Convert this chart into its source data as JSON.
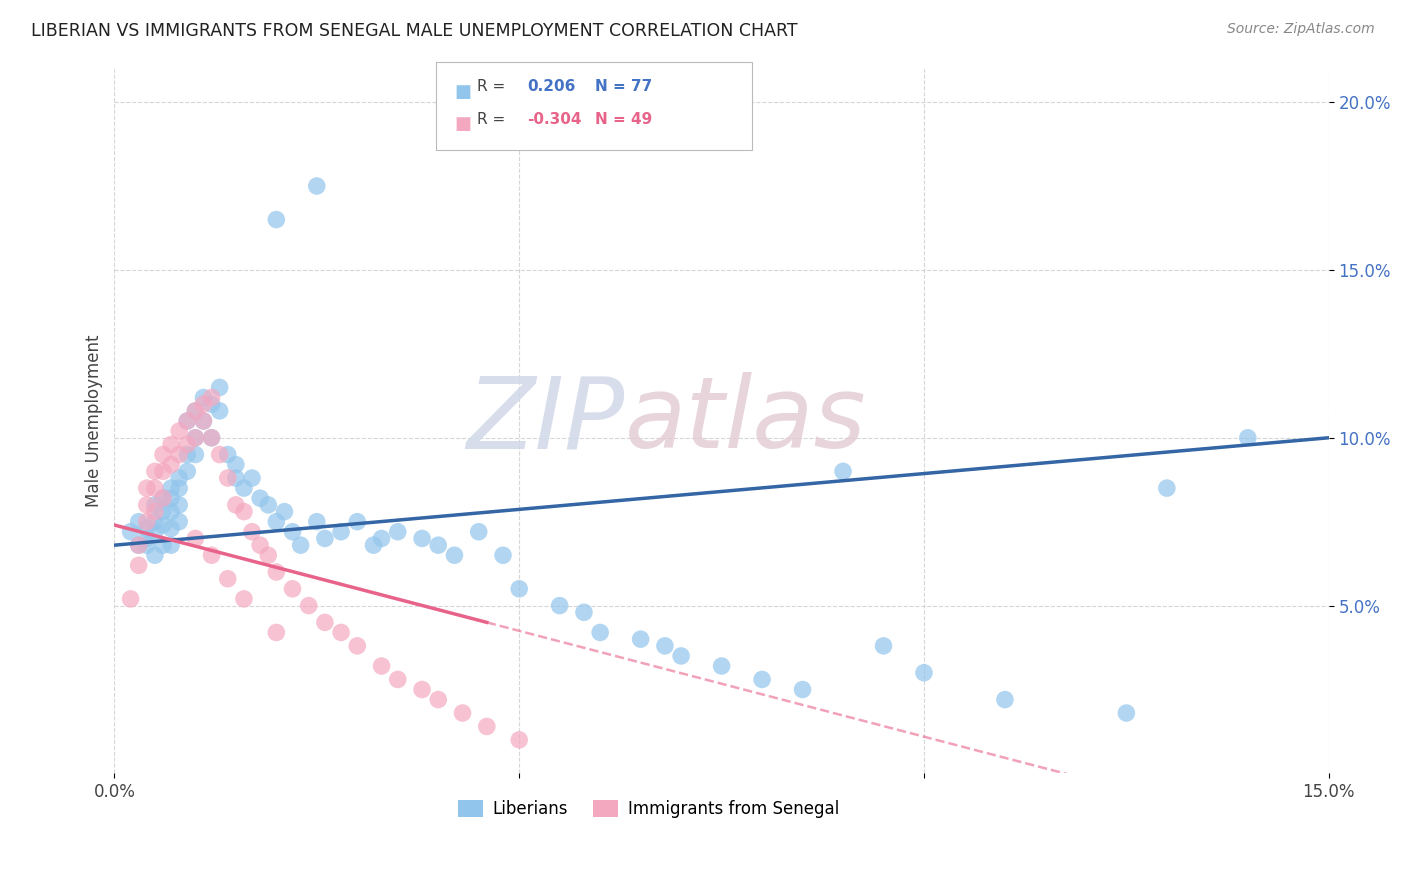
{
  "title": "LIBERIAN VS IMMIGRANTS FROM SENEGAL MALE UNEMPLOYMENT CORRELATION CHART",
  "source": "Source: ZipAtlas.com",
  "ylabel": "Male Unemployment",
  "xlim": [
    0.0,
    0.15
  ],
  "ylim": [
    0.0,
    0.21
  ],
  "yticks": [
    0.05,
    0.1,
    0.15,
    0.2
  ],
  "xticks": [
    0.0,
    0.05,
    0.1,
    0.15
  ],
  "xtick_labels": [
    "0.0%",
    "",
    "",
    "15.0%"
  ],
  "ytick_labels": [
    "5.0%",
    "10.0%",
    "15.0%",
    "20.0%"
  ],
  "legend_blue_r": "0.206",
  "legend_blue_n": "77",
  "legend_pink_r": "-0.304",
  "legend_pink_n": "49",
  "blue_color": "#92C5EC",
  "pink_color": "#F4A8C0",
  "blue_line_color": "#3465A4",
  "pink_line_color": "#E8638A",
  "watermark_zip": "ZIP",
  "watermark_atlas": "atlas",
  "blue_x": [
    0.002,
    0.003,
    0.003,
    0.004,
    0.004,
    0.004,
    0.005,
    0.005,
    0.005,
    0.005,
    0.006,
    0.006,
    0.006,
    0.006,
    0.007,
    0.007,
    0.007,
    0.007,
    0.007,
    0.008,
    0.008,
    0.008,
    0.008,
    0.009,
    0.009,
    0.009,
    0.01,
    0.01,
    0.01,
    0.011,
    0.011,
    0.012,
    0.012,
    0.013,
    0.013,
    0.014,
    0.015,
    0.015,
    0.016,
    0.017,
    0.018,
    0.019,
    0.02,
    0.021,
    0.022,
    0.023,
    0.025,
    0.026,
    0.028,
    0.03,
    0.032,
    0.033,
    0.035,
    0.038,
    0.04,
    0.042,
    0.045,
    0.048,
    0.05,
    0.055,
    0.058,
    0.06,
    0.065,
    0.068,
    0.07,
    0.075,
    0.08,
    0.085,
    0.09,
    0.095,
    0.1,
    0.11,
    0.125,
    0.13,
    0.14,
    0.02,
    0.025
  ],
  "blue_y": [
    0.072,
    0.068,
    0.075,
    0.07,
    0.073,
    0.068,
    0.08,
    0.075,
    0.072,
    0.065,
    0.082,
    0.078,
    0.074,
    0.068,
    0.085,
    0.082,
    0.078,
    0.073,
    0.068,
    0.088,
    0.085,
    0.08,
    0.075,
    0.105,
    0.095,
    0.09,
    0.108,
    0.1,
    0.095,
    0.112,
    0.105,
    0.11,
    0.1,
    0.115,
    0.108,
    0.095,
    0.092,
    0.088,
    0.085,
    0.088,
    0.082,
    0.08,
    0.075,
    0.078,
    0.072,
    0.068,
    0.075,
    0.07,
    0.072,
    0.075,
    0.068,
    0.07,
    0.072,
    0.07,
    0.068,
    0.065,
    0.072,
    0.065,
    0.055,
    0.05,
    0.048,
    0.042,
    0.04,
    0.038,
    0.035,
    0.032,
    0.028,
    0.025,
    0.09,
    0.038,
    0.03,
    0.022,
    0.018,
    0.085,
    0.1,
    0.165,
    0.175
  ],
  "pink_x": [
    0.002,
    0.003,
    0.003,
    0.004,
    0.004,
    0.004,
    0.005,
    0.005,
    0.005,
    0.006,
    0.006,
    0.006,
    0.007,
    0.007,
    0.008,
    0.008,
    0.009,
    0.009,
    0.01,
    0.01,
    0.011,
    0.011,
    0.012,
    0.012,
    0.013,
    0.014,
    0.015,
    0.016,
    0.017,
    0.018,
    0.019,
    0.02,
    0.022,
    0.024,
    0.026,
    0.028,
    0.03,
    0.033,
    0.035,
    0.038,
    0.04,
    0.043,
    0.046,
    0.05,
    0.01,
    0.012,
    0.014,
    0.016,
    0.02
  ],
  "pink_y": [
    0.052,
    0.068,
    0.062,
    0.085,
    0.08,
    0.075,
    0.09,
    0.085,
    0.078,
    0.095,
    0.09,
    0.082,
    0.098,
    0.092,
    0.102,
    0.095,
    0.105,
    0.098,
    0.108,
    0.1,
    0.11,
    0.105,
    0.112,
    0.1,
    0.095,
    0.088,
    0.08,
    0.078,
    0.072,
    0.068,
    0.065,
    0.06,
    0.055,
    0.05,
    0.045,
    0.042,
    0.038,
    0.032,
    0.028,
    0.025,
    0.022,
    0.018,
    0.014,
    0.01,
    0.07,
    0.065,
    0.058,
    0.052,
    0.042
  ]
}
